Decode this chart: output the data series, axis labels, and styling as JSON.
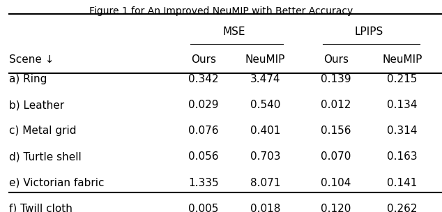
{
  "title": "Figure 1 for An Improved NeuMIP with Better Accuracy",
  "group_headers": [
    "MSE",
    "LPIPS"
  ],
  "col_headers": [
    "Ours",
    "NeuMIP",
    "Ours",
    "NeuMIP"
  ],
  "row_label_header": "Scene ↓",
  "rows": [
    [
      "a) Ring",
      "0.342",
      "3.474",
      "0.139",
      "0.215"
    ],
    [
      "b) Leather",
      "0.029",
      "0.540",
      "0.012",
      "0.134"
    ],
    [
      "c) Metal grid",
      "0.076",
      "0.401",
      "0.156",
      "0.314"
    ],
    [
      "d) Turtle shell",
      "0.056",
      "0.703",
      "0.070",
      "0.163"
    ],
    [
      "e) Victorian fabric",
      "1.335",
      "8.071",
      "0.104",
      "0.141"
    ],
    [
      "f) Twill cloth",
      "0.005",
      "0.018",
      "0.120",
      "0.262"
    ]
  ],
  "font_size": 11,
  "header_font_size": 11,
  "title_font_size": 10,
  "bg_color": "#ffffff",
  "text_color": "#000000"
}
